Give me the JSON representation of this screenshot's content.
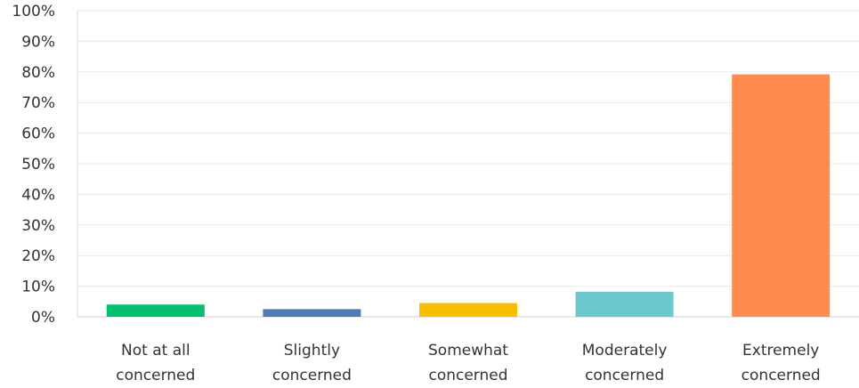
{
  "chart_data": {
    "type": "bar",
    "categories": [
      [
        "Not at all",
        "concerned"
      ],
      [
        "Slightly",
        "concerned"
      ],
      [
        "Somewhat",
        "concerned"
      ],
      [
        "Moderately",
        "concerned"
      ],
      [
        "Extremely",
        "concerned"
      ]
    ],
    "values": [
      4,
      2.5,
      4.5,
      8.2,
      79.2
    ],
    "colors": [
      "#00bf6f",
      "#507cb6",
      "#f9be00",
      "#6bc8cd",
      "#ff8b4f"
    ],
    "ylim": [
      0,
      100
    ],
    "yticks": [
      0,
      10,
      20,
      30,
      40,
      50,
      60,
      70,
      80,
      90,
      100
    ],
    "ytick_labels": [
      "0%",
      "10%",
      "20%",
      "30%",
      "40%",
      "50%",
      "60%",
      "70%",
      "80%",
      "90%",
      "100%"
    ],
    "grid": true,
    "title": "",
    "xlabel": "",
    "ylabel": ""
  }
}
